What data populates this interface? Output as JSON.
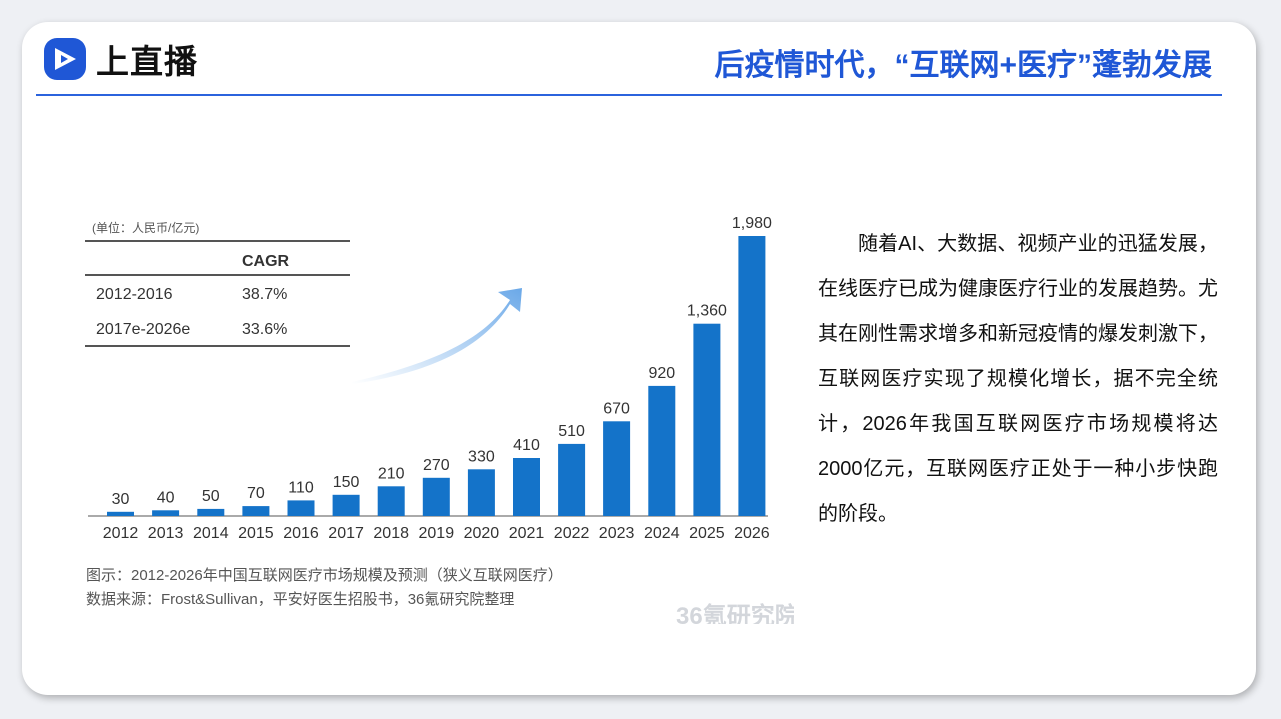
{
  "header": {
    "brand": "上直播",
    "title": "后疫情时代，“互联网+医疗”蓬勃发展",
    "logo_icon": "play-logo-icon"
  },
  "colors": {
    "accent": "#1f57d6",
    "bar": "#1473c9",
    "arrow": "#7fb6ec"
  },
  "chart_data": {
    "type": "bar",
    "unit_label": "(单位：人民币/亿元)",
    "categories": [
      "2012",
      "2013",
      "2014",
      "2015",
      "2016",
      "2017",
      "2018",
      "2019",
      "2020",
      "2021",
      "2022",
      "2023",
      "2024",
      "2025",
      "2026"
    ],
    "values": [
      30,
      40,
      50,
      70,
      110,
      150,
      210,
      270,
      330,
      410,
      510,
      670,
      920,
      1360,
      1980
    ],
    "value_labels": [
      "30",
      "40",
      "50",
      "70",
      "110",
      "150",
      "210",
      "270",
      "330",
      "410",
      "510",
      "670",
      "920",
      "1,360",
      "1,980"
    ],
    "ylim": [
      0,
      1980
    ],
    "grid": false,
    "legend": "none",
    "cagr_table": {
      "header": "CAGR",
      "rows": [
        {
          "period": "2012-2016",
          "value": "38.7%"
        },
        {
          "period": "2017e-2026e",
          "value": "33.6%"
        }
      ]
    },
    "caption": "图示：2012-2026年中国互联网医疗市场规模及预测（狭义互联网医疗）",
    "source": "数据来源：Frost&Sullivan，平安好医生招股书，36氪研究院整理",
    "watermark": "36氪研究院"
  },
  "body_text": "随着AI、大数据、视频产业的迅猛发展，在线医疗已成为健康医疗行业的发展趋势。尤其在刚性需求增多和新冠疫情的爆发刺激下，互联网医疗实现了规模化增长，据不完全统计，2026年我国互联网医疗市场规模将达2000亿元，互联网医疗正处于一种小步快跑的阶段。"
}
